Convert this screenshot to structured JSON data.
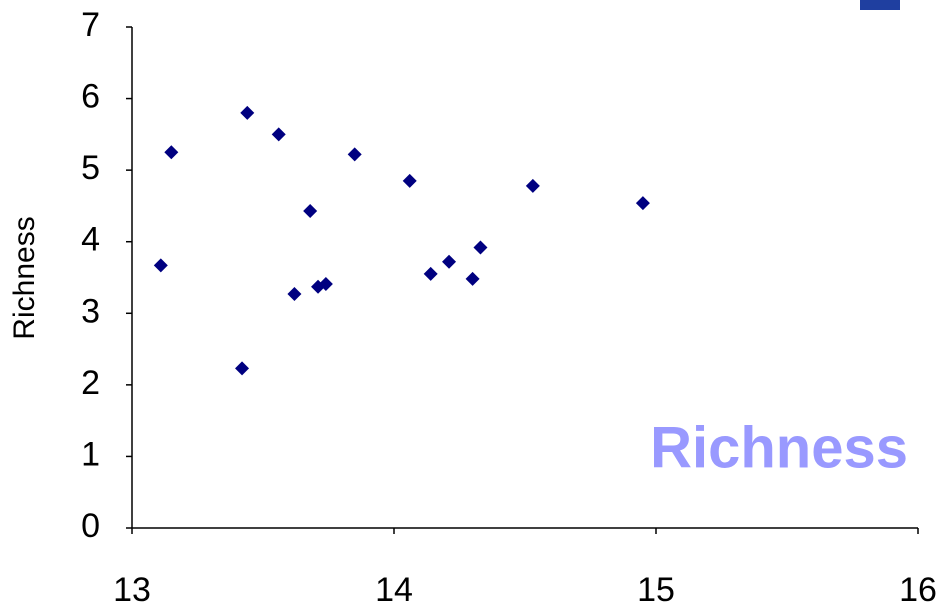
{
  "chart_data": {
    "type": "scatter",
    "y_label": "Richness",
    "annotation": "Richness",
    "color": "#000080",
    "xlim": [
      13,
      16
    ],
    "xticks": [
      13,
      14,
      15,
      16
    ],
    "ylim": [
      0,
      7
    ],
    "yticks": [
      0,
      1,
      2,
      3,
      4,
      5,
      6,
      7
    ],
    "grid": false,
    "x": [
      13.11,
      13.15,
      13.42,
      13.44,
      13.56,
      13.62,
      13.68,
      13.71,
      13.74,
      13.85,
      14.06,
      14.14,
      14.21,
      14.3,
      14.33,
      14.53,
      14.95
    ],
    "values": [
      3.67,
      5.25,
      2.23,
      5.8,
      5.5,
      3.27,
      4.43,
      3.37,
      3.41,
      5.22,
      4.85,
      3.55,
      3.72,
      3.48,
      3.92,
      4.78,
      4.54
    ]
  }
}
